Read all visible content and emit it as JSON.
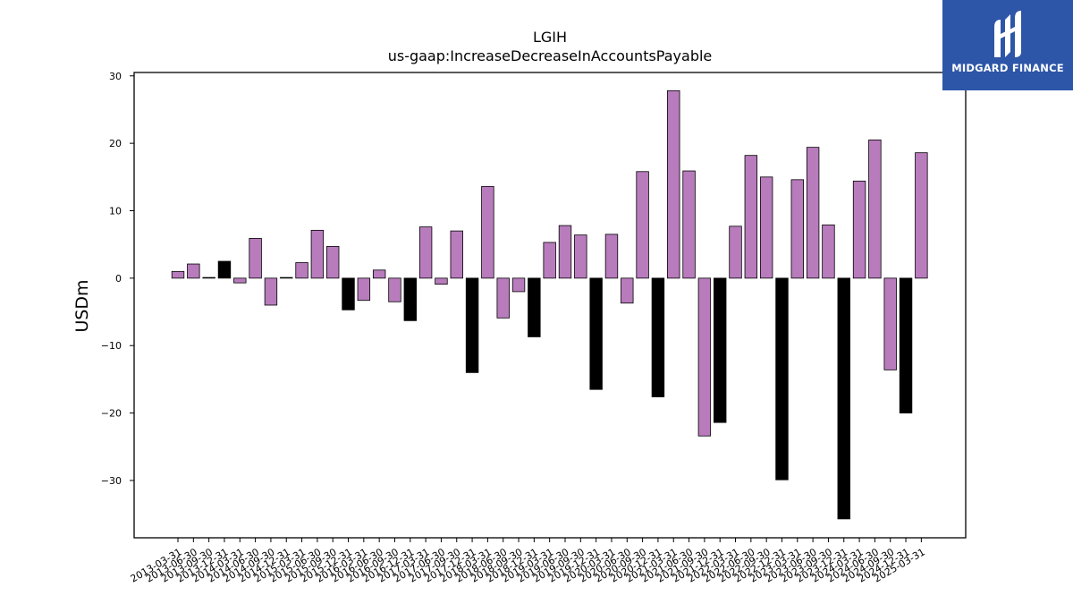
{
  "logo": {
    "text": "MIDGARD FINANCE",
    "background": "#2d56a8",
    "icon": "midgard-m-mark-icon"
  },
  "chart_data": {
    "type": "bar",
    "title": "LGIH",
    "subtitle": "us-gaap:IncreaseDecreaseInAccountsPayable",
    "xlabel": "",
    "ylabel": "USDm",
    "ylim": [
      -38.5,
      30.5
    ],
    "yticks": [
      30,
      20,
      10,
      0,
      -10,
      -20,
      -30
    ],
    "grid": false,
    "colors": {
      "default": "#b87cbd",
      "q4": "#000000",
      "edge": "#000000"
    },
    "categories": [
      "2013-03-31",
      "2013-06-30",
      "2013-09-30",
      "2013-12-31",
      "2014-03-31",
      "2014-06-30",
      "2014-09-30",
      "2014-12-31",
      "2015-03-31",
      "2015-06-30",
      "2015-09-30",
      "2015-12-31",
      "2016-03-31",
      "2016-06-30",
      "2016-09-30",
      "2016-12-31",
      "2017-03-31",
      "2017-06-30",
      "2017-09-30",
      "2017-12-31",
      "2018-03-31",
      "2018-06-30",
      "2018-09-30",
      "2018-12-31",
      "2019-03-31",
      "2019-06-30",
      "2019-09-30",
      "2019-12-31",
      "2020-03-31",
      "2020-06-30",
      "2020-09-30",
      "2020-12-31",
      "2021-03-31",
      "2021-06-30",
      "2021-09-30",
      "2021-12-31",
      "2022-03-31",
      "2022-06-30",
      "2022-09-30",
      "2022-12-31",
      "2023-03-31",
      "2023-06-30",
      "2023-09-30",
      "2023-12-31",
      "2024-03-31",
      "2024-06-30",
      "2024-09-30",
      "2024-12-31",
      "2025-03-31"
    ],
    "values": [
      1.0,
      2.1,
      0.1,
      2.5,
      -0.7,
      5.9,
      -4.0,
      0.1,
      2.3,
      7.1,
      4.7,
      -4.7,
      -3.3,
      1.2,
      -3.5,
      -6.3,
      7.6,
      -0.9,
      7.0,
      -14.0,
      13.6,
      -5.9,
      -2.0,
      -8.7,
      5.3,
      7.8,
      6.4,
      -16.5,
      6.5,
      -3.7,
      15.8,
      -17.6,
      27.8,
      15.9,
      -23.4,
      -21.4,
      7.7,
      18.2,
      15.0,
      -29.9,
      14.6,
      19.4,
      7.9,
      -35.7,
      14.4,
      20.5,
      -13.6,
      -20.0,
      18.6
    ]
  }
}
